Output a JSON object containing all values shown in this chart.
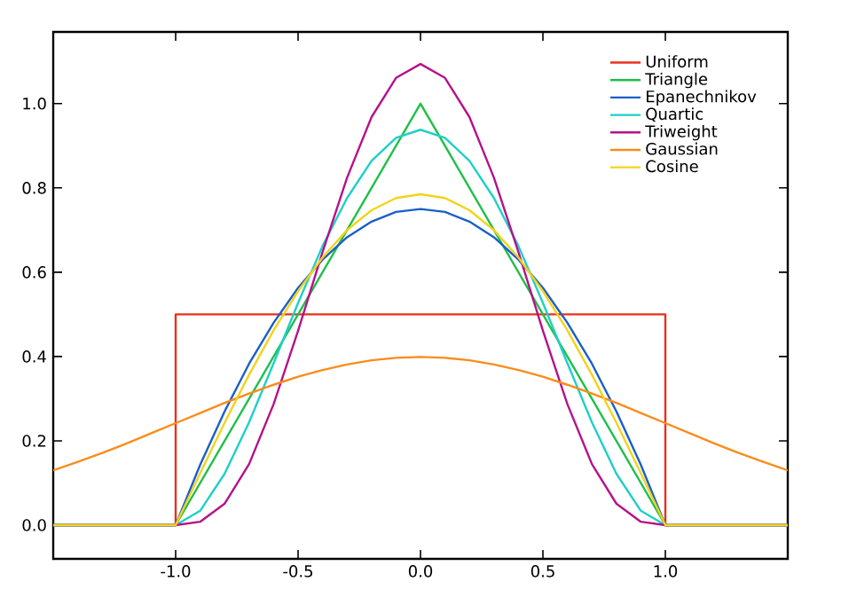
{
  "chart_data": {
    "type": "line",
    "xlim": [
      -1.5,
      1.5
    ],
    "ylim": [
      -0.08,
      1.17
    ],
    "xticks": [
      {
        "value": -1.0,
        "label": "-1.0"
      },
      {
        "value": -0.5,
        "label": "-0.5"
      },
      {
        "value": 0.0,
        "label": "0.0"
      },
      {
        "value": 0.5,
        "label": "0.5"
      },
      {
        "value": 1.0,
        "label": "1.0"
      }
    ],
    "yticks": [
      {
        "value": 0.0,
        "label": "0.0"
      },
      {
        "value": 0.2,
        "label": "0.2"
      },
      {
        "value": 0.4,
        "label": "0.4"
      },
      {
        "value": 0.6,
        "label": "0.6"
      },
      {
        "value": 0.8,
        "label": "0.8"
      },
      {
        "value": 1.0,
        "label": "1.0"
      }
    ],
    "legend": "top right",
    "grid": false,
    "marker": "none",
    "line_style": "solid",
    "series": [
      {
        "name": "Uniform",
        "color": "#e8301c",
        "x": [
          -1.5,
          -1,
          -1,
          1,
          1,
          1.5
        ],
        "values": [
          0,
          0,
          0.5,
          0.5,
          0,
          0
        ]
      },
      {
        "name": "Triangle",
        "color": "#1fbf4a",
        "x": [
          -1.5,
          -1,
          0,
          1,
          1.5
        ],
        "values": [
          0,
          0,
          1,
          0,
          0
        ]
      },
      {
        "name": "Epanechnikov",
        "color": "#1a5fc8",
        "x": [
          -1.5,
          -1,
          -0.9,
          -0.8,
          -0.7,
          -0.6,
          -0.5,
          -0.4,
          -0.3,
          -0.2,
          -0.1,
          0,
          0.1,
          0.2,
          0.3,
          0.4,
          0.5,
          0.6,
          0.7,
          0.8,
          0.9,
          1,
          1.5
        ],
        "values": [
          0,
          0,
          0.143,
          0.27,
          0.383,
          0.48,
          0.563,
          0.63,
          0.683,
          0.72,
          0.743,
          0.75,
          0.743,
          0.72,
          0.683,
          0.63,
          0.563,
          0.48,
          0.383,
          0.27,
          0.143,
          0,
          0
        ]
      },
      {
        "name": "Quartic",
        "color": "#1fcfc8",
        "x": [
          -1.5,
          -1,
          -0.9,
          -0.8,
          -0.7,
          -0.6,
          -0.5,
          -0.4,
          -0.3,
          -0.2,
          -0.1,
          0,
          0.1,
          0.2,
          0.3,
          0.4,
          0.5,
          0.6,
          0.7,
          0.8,
          0.9,
          1,
          1.5
        ],
        "values": [
          0,
          0,
          0.034,
          0.122,
          0.244,
          0.384,
          0.527,
          0.662,
          0.776,
          0.864,
          0.919,
          0.938,
          0.919,
          0.864,
          0.776,
          0.662,
          0.527,
          0.384,
          0.244,
          0.122,
          0.034,
          0,
          0
        ]
      },
      {
        "name": "Triweight",
        "color": "#b5128a",
        "x": [
          -1.5,
          -1,
          -0.9,
          -0.8,
          -0.7,
          -0.6,
          -0.5,
          -0.4,
          -0.3,
          -0.2,
          -0.1,
          0,
          0.1,
          0.2,
          0.3,
          0.4,
          0.5,
          0.6,
          0.7,
          0.8,
          0.9,
          1,
          1.5
        ],
        "values": [
          0,
          0,
          0.008,
          0.051,
          0.145,
          0.287,
          0.461,
          0.648,
          0.824,
          0.968,
          1.061,
          1.094,
          1.061,
          0.968,
          0.824,
          0.648,
          0.461,
          0.287,
          0.145,
          0.051,
          0.008,
          0,
          0
        ]
      },
      {
        "name": "Gaussian",
        "color": "#fb8c1a",
        "x": [
          -1.5,
          -1.4,
          -1.3,
          -1.2,
          -1.1,
          -1,
          -0.9,
          -0.8,
          -0.7,
          -0.6,
          -0.5,
          -0.4,
          -0.3,
          -0.2,
          -0.1,
          0,
          0.1,
          0.2,
          0.3,
          0.4,
          0.5,
          0.6,
          0.7,
          0.8,
          0.9,
          1,
          1.1,
          1.2,
          1.3,
          1.4,
          1.5
        ],
        "values": [
          0.13,
          0.15,
          0.171,
          0.194,
          0.218,
          0.242,
          0.266,
          0.29,
          0.312,
          0.333,
          0.352,
          0.368,
          0.381,
          0.391,
          0.397,
          0.399,
          0.397,
          0.391,
          0.381,
          0.368,
          0.352,
          0.333,
          0.312,
          0.29,
          0.266,
          0.242,
          0.218,
          0.194,
          0.171,
          0.15,
          0.13
        ]
      },
      {
        "name": "Cosine",
        "color": "#f2d31c",
        "x": [
          -1.5,
          -1,
          -0.9,
          -0.8,
          -0.7,
          -0.6,
          -0.5,
          -0.4,
          -0.3,
          -0.2,
          -0.1,
          0,
          0.1,
          0.2,
          0.3,
          0.4,
          0.5,
          0.6,
          0.7,
          0.8,
          0.9,
          1,
          1.5
        ],
        "values": [
          0,
          0,
          0.123,
          0.243,
          0.357,
          0.462,
          0.555,
          0.635,
          0.7,
          0.747,
          0.776,
          0.785,
          0.776,
          0.747,
          0.7,
          0.635,
          0.555,
          0.462,
          0.357,
          0.243,
          0.123,
          0,
          0
        ]
      }
    ]
  }
}
